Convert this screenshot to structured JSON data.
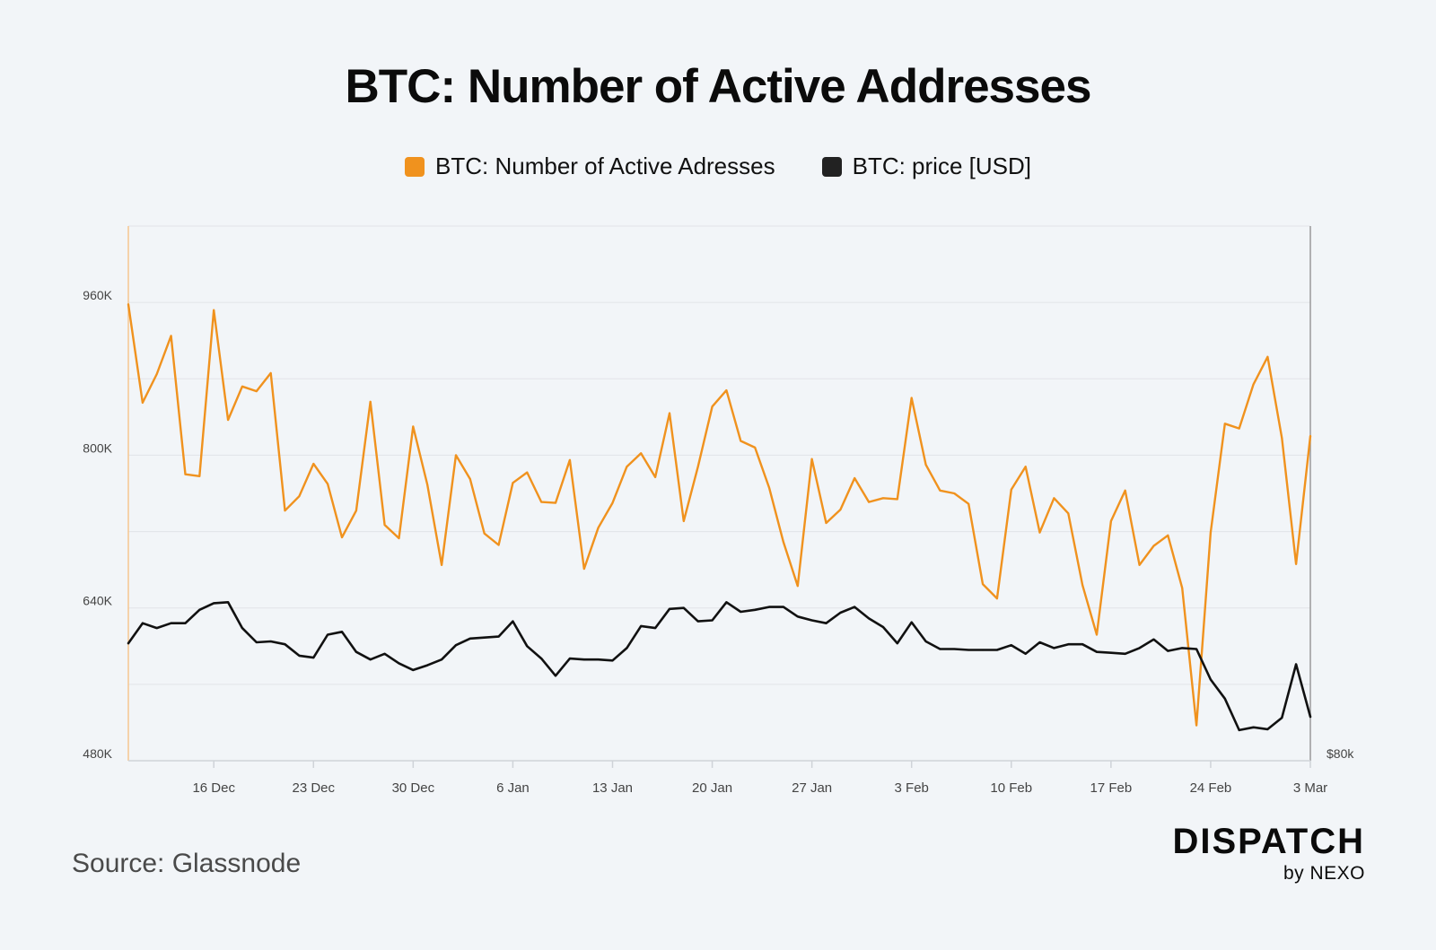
{
  "chart_data": {
    "type": "line",
    "title": "BTC: Number of Active Addresses",
    "legend_position": "top-center",
    "series": [
      {
        "name": "BTC: Number of Active Adresses",
        "color": "#f0921e",
        "axis": "left",
        "values": [
          958000,
          855000,
          885000,
          925000,
          780000,
          778000,
          952000,
          837000,
          872000,
          867000,
          886000,
          742000,
          757000,
          791000,
          770000,
          714000,
          742000,
          856000,
          727000,
          713000,
          830000,
          769000,
          685000,
          800000,
          775000,
          718000,
          706000,
          771000,
          782000,
          751000,
          750000,
          795000,
          681000,
          724000,
          750000,
          788000,
          802000,
          777000,
          844000,
          731000,
          788000,
          851000,
          868000,
          815000,
          808000,
          766000,
          709000,
          663000,
          796000,
          729000,
          743000,
          776000,
          751000,
          755000,
          754000,
          860000,
          790000,
          763000,
          760000,
          749000,
          665000,
          650000,
          764000,
          788000,
          719000,
          755000,
          739000,
          664000,
          612000,
          731000,
          763000,
          685000,
          705000,
          716000,
          661000,
          517000,
          719000,
          833000,
          828000,
          874000,
          903000,
          818000,
          686000,
          820000
        ]
      },
      {
        "name": "BTC: price [USD]",
        "color": "#111111",
        "axis": "right",
        "values": [
          603000,
          624000,
          619000,
          624000,
          624000,
          638000,
          645000,
          646000,
          619000,
          604000,
          605000,
          602000,
          590000,
          588000,
          612000,
          615000,
          594000,
          586000,
          592000,
          582000,
          575000,
          580000,
          586000,
          601000,
          608000,
          609000,
          610000,
          626000,
          600000,
          587000,
          569000,
          587000,
          586000,
          586000,
          585000,
          598000,
          621000,
          619000,
          639000,
          640000,
          626000,
          627000,
          646000,
          636000,
          638000,
          641000,
          641000,
          631000,
          627000,
          624000,
          635000,
          641000,
          629000,
          620000,
          603000,
          625000,
          605000,
          597000,
          597000,
          596000,
          596000,
          596000,
          601000,
          592000,
          604000,
          598000,
          602000,
          602000,
          594000,
          593000,
          592000,
          598000,
          607000,
          595000,
          598000,
          597000,
          565000,
          545000,
          512000,
          515000,
          513000,
          525000,
          581000,
          526000
        ]
      }
    ],
    "x_count": 84,
    "x_ticks": [
      {
        "label": "16 Dec",
        "index": 6
      },
      {
        "label": "23 Dec",
        "index": 13
      },
      {
        "label": "30 Dec",
        "index": 20
      },
      {
        "label": "6 Jan",
        "index": 27
      },
      {
        "label": "13 Jan",
        "index": 34
      },
      {
        "label": "20 Jan",
        "index": 41
      },
      {
        "label": "27 Jan",
        "index": 48
      },
      {
        "label": "3 Feb",
        "index": 55
      },
      {
        "label": "10 Feb",
        "index": 62
      },
      {
        "label": "17 Feb",
        "index": 69
      },
      {
        "label": "24 Feb",
        "index": 76
      },
      {
        "label": "3 Mar",
        "index": 83
      }
    ],
    "y_left": {
      "ylim": [
        480000,
        1040000
      ],
      "ticks": [
        {
          "label": "480K",
          "value": 480000
        },
        {
          "label": "640K",
          "value": 640000
        },
        {
          "label": "800K",
          "value": 800000
        },
        {
          "label": "960K",
          "value": 960000
        }
      ],
      "gridlines": [
        560000,
        640000,
        720000,
        800000,
        880000,
        960000
      ]
    },
    "y_right": {
      "ticks": [
        {
          "label": "$80k",
          "value": 480000
        }
      ]
    },
    "grid": true
  },
  "legend": {
    "items": [
      {
        "label": "BTC: Number of Active Adresses",
        "color": "#f0921e"
      },
      {
        "label": "BTC: price [USD]",
        "color": "#222222"
      }
    ]
  },
  "footer": {
    "source": "Source: Glassnode",
    "brand_main": "DISPATCH",
    "brand_sub": "by NEXO"
  }
}
